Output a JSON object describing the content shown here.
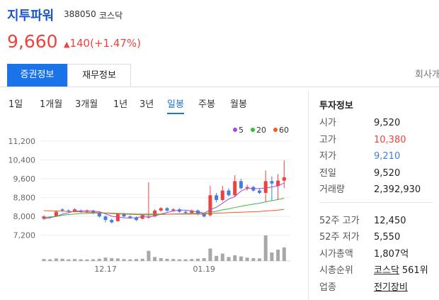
{
  "header": {
    "name": "지투파워",
    "code": "388050",
    "market": "코스닥"
  },
  "price": {
    "current": "9,660",
    "change": "140",
    "change_pct": "(+1.47%)"
  },
  "tabs": {
    "items": [
      "증권정보",
      "재무정보",
      "회사개요"
    ],
    "active": 0
  },
  "periods": {
    "items": [
      "1일",
      "1개월",
      "3개월",
      "1년",
      "3년",
      "일봉",
      "주봉",
      "월봉"
    ],
    "active": 5
  },
  "chart_data": {
    "type": "candlestick",
    "x": [
      null,
      null,
      null,
      null,
      null,
      null,
      null,
      null,
      null,
      null,
      "12.17",
      null,
      null,
      null,
      null,
      null,
      null,
      null,
      null,
      null,
      null,
      null,
      null,
      null,
      null,
      null,
      "01.19",
      null,
      null,
      null,
      null,
      null,
      null,
      null,
      null,
      null,
      null,
      null,
      null,
      null
    ],
    "candles": [
      {
        "open": 7900,
        "high": 8050,
        "low": 7850,
        "close": 8000
      },
      {
        "open": 7950,
        "high": 8000,
        "low": 7900,
        "close": 7980
      },
      {
        "open": 8000,
        "high": 8250,
        "low": 7980,
        "close": 8200
      },
      {
        "open": 8300,
        "high": 8350,
        "low": 8200,
        "close": 8250
      },
      {
        "open": 8250,
        "high": 8300,
        "low": 8150,
        "close": 8200
      },
      {
        "open": 8200,
        "high": 8350,
        "low": 8180,
        "close": 8300
      },
      {
        "open": 8250,
        "high": 8300,
        "low": 8150,
        "close": 8200
      },
      {
        "open": 8200,
        "high": 8300,
        "low": 8150,
        "close": 8250
      },
      {
        "open": 8250,
        "high": 8280,
        "low": 8100,
        "close": 8150
      },
      {
        "open": 8150,
        "high": 8200,
        "low": 7950,
        "close": 8000
      },
      {
        "open": 8000,
        "high": 8050,
        "low": 7750,
        "close": 7850
      },
      {
        "open": 7850,
        "high": 7900,
        "low": 7700,
        "close": 7750
      },
      {
        "open": 7800,
        "high": 8150,
        "low": 7780,
        "close": 8100
      },
      {
        "open": 8100,
        "high": 8150,
        "low": 7950,
        "close": 8000
      },
      {
        "open": 8000,
        "high": 8050,
        "low": 7900,
        "close": 7950
      },
      {
        "open": 7950,
        "high": 8000,
        "low": 7800,
        "close": 7850
      },
      {
        "open": 7900,
        "high": 8100,
        "low": 7880,
        "close": 8050
      },
      {
        "open": 7950,
        "high": 9450,
        "low": 7900,
        "close": 8000
      },
      {
        "open": 8000,
        "high": 8300,
        "low": 7980,
        "close": 8250
      },
      {
        "open": 8250,
        "high": 8400,
        "low": 8200,
        "close": 8350
      },
      {
        "open": 8350,
        "high": 8400,
        "low": 8200,
        "close": 8250
      },
      {
        "open": 8250,
        "high": 8350,
        "low": 8200,
        "close": 8300
      },
      {
        "open": 8300,
        "high": 8350,
        "low": 8150,
        "close": 8200
      },
      {
        "open": 8200,
        "high": 8250,
        "low": 8100,
        "close": 8150
      },
      {
        "open": 8150,
        "high": 8300,
        "low": 8100,
        "close": 8250
      },
      {
        "open": 8250,
        "high": 8300,
        "low": 8050,
        "close": 8100
      },
      {
        "open": 8100,
        "high": 8150,
        "low": 7950,
        "close": 8000
      },
      {
        "open": 8050,
        "high": 9300,
        "low": 8000,
        "close": 8900
      },
      {
        "open": 8900,
        "high": 9000,
        "low": 8600,
        "close": 8700
      },
      {
        "open": 8700,
        "high": 9300,
        "low": 8650,
        "close": 9100
      },
      {
        "open": 9100,
        "high": 9200,
        "low": 8850,
        "close": 8900
      },
      {
        "open": 8900,
        "high": 9750,
        "low": 8850,
        "close": 9500
      },
      {
        "open": 9500,
        "high": 9600,
        "low": 9150,
        "close": 9200
      },
      {
        "open": 9200,
        "high": 9350,
        "low": 9100,
        "close": 9250
      },
      {
        "open": 9250,
        "high": 9300,
        "low": 9050,
        "close": 9100
      },
      {
        "open": 9100,
        "high": 9200,
        "low": 8950,
        "close": 9000
      },
      {
        "open": 9000,
        "high": 9950,
        "low": 8600,
        "close": 9500
      },
      {
        "open": 9500,
        "high": 9700,
        "low": 8650,
        "close": 9400
      },
      {
        "open": 9300,
        "high": 9800,
        "low": 8700,
        "close": 9520
      },
      {
        "open": 9520,
        "high": 10380,
        "low": 9210,
        "close": 9660
      }
    ],
    "volume": [
      350000,
      300000,
      450000,
      400000,
      300000,
      350000,
      300000,
      280000,
      320000,
      400000,
      600000,
      500000,
      450000,
      350000,
      300000,
      350000,
      400000,
      1800000,
      700000,
      500000,
      400000,
      350000,
      300000,
      300000,
      350000,
      400000,
      500000,
      2200000,
      900000,
      1300000,
      700000,
      1000000,
      800000,
      600000,
      500000,
      450000,
      4500000,
      1500000,
      2000000,
      2392930
    ],
    "volume_lim": [
      0,
      5000000
    ],
    "volume_color": "#a8a8a8",
    "series": [
      {
        "name": "5",
        "color": "#a349e0",
        "values": [
          7900,
          7950,
          8000,
          8100,
          8150,
          8230,
          8230,
          8240,
          8230,
          8200,
          8110,
          8010,
          7970,
          7940,
          7930,
          7950,
          7990,
          7970,
          8020,
          8100,
          8170,
          8230,
          8270,
          8270,
          8230,
          8200,
          8140,
          8280,
          8390,
          8560,
          8740,
          8840,
          9080,
          9190,
          9190,
          9180,
          9210,
          9250,
          9300,
          9420
        ]
      },
      {
        "name": "20",
        "color": "#2fbf3f",
        "values": [
          7950,
          7980,
          8000,
          8050,
          8080,
          8100,
          8120,
          8130,
          8140,
          8150,
          8140,
          8120,
          8110,
          8100,
          8090,
          8080,
          8070,
          8060,
          8070,
          8080,
          8090,
          8100,
          8110,
          8120,
          8130,
          8130,
          8120,
          8180,
          8220,
          8280,
          8320,
          8380,
          8430,
          8480,
          8520,
          8560,
          8620,
          8670,
          8720,
          8770
        ]
      },
      {
        "name": "60",
        "color": "#f05a28",
        "values": [
          8250,
          8240,
          8230,
          8220,
          8210,
          8200,
          8190,
          8180,
          8170,
          8160,
          8150,
          8140,
          8130,
          8120,
          8110,
          8100,
          8100,
          8100,
          8100,
          8100,
          8100,
          8100,
          8100,
          8100,
          8100,
          8100,
          8100,
          8120,
          8140,
          8150,
          8160,
          8170,
          8180,
          8190,
          8200,
          8210,
          8230,
          8250,
          8270,
          8300
        ]
      }
    ],
    "up_color": "#f0413c",
    "down_color": "#3f7fe0",
    "ylim": [
      6800,
      11500
    ],
    "yticks": [
      {
        "value": 7200,
        "label": "7,200"
      },
      {
        "value": 8000,
        "label": "8,000"
      },
      {
        "value": 8800,
        "label": "8,800"
      },
      {
        "value": 9600,
        "label": "9,600"
      },
      {
        "value": 10400,
        "label": "10,400"
      },
      {
        "value": 11200,
        "label": "11,200"
      }
    ],
    "grid": true
  },
  "info": {
    "title": "투자정보",
    "groups": [
      [
        {
          "label": "시가",
          "value": "9,520"
        },
        {
          "label": "고가",
          "value": "10,380",
          "color": "#f0413c"
        },
        {
          "label": "저가",
          "value": "9,210",
          "color": "#3f7fe0"
        },
        {
          "label": "전일",
          "value": "9,520"
        },
        {
          "label": "거래량",
          "value": "2,392,930"
        }
      ],
      [
        {
          "label": "52주 고가",
          "value": "12,450"
        },
        {
          "label": "52주 저가",
          "value": "5,550"
        },
        {
          "label": "시가총액",
          "value": "1,807억"
        },
        {
          "label": "시총순위",
          "link": "코스닥",
          "value": "561위"
        },
        {
          "label": "업종",
          "link": "전기장비"
        }
      ]
    ]
  }
}
